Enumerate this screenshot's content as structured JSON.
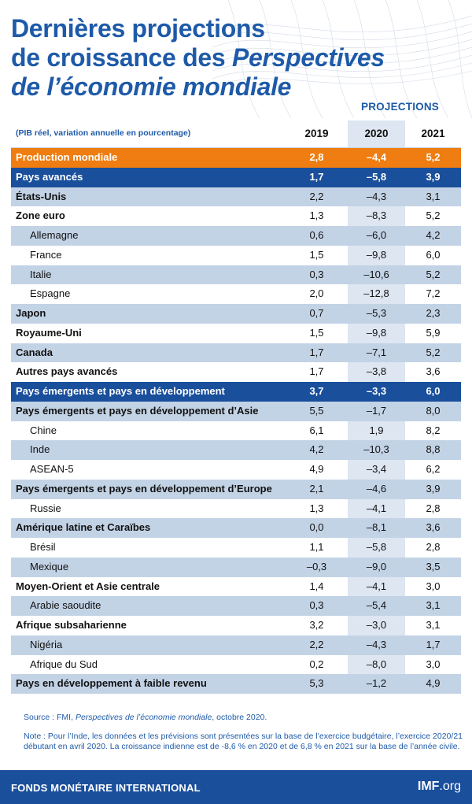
{
  "title": {
    "line1": "Dernières projections",
    "line2a": "de croissance des ",
    "line2b": "Perspectives",
    "line3": "de l’économie mondiale"
  },
  "projections_label": "PROJECTIONS",
  "table": {
    "unit_note": "(PIB réel, variation annuelle en pourcentage)",
    "years": [
      "2019",
      "2020",
      "2021"
    ],
    "rows": [
      {
        "label": "Production mondiale",
        "v": [
          "2,8",
          "–4,4",
          "5,2"
        ],
        "style": "world"
      },
      {
        "label": "Pays avancés",
        "v": [
          "1,7",
          "–5,8",
          "3,9"
        ],
        "style": "bluebar"
      },
      {
        "label": "États-Unis",
        "v": [
          "2,2",
          "–4,3",
          "3,1"
        ],
        "style": "bold alt"
      },
      {
        "label": "Zone euro",
        "v": [
          "1,3",
          "–8,3",
          "5,2"
        ],
        "style": "bold"
      },
      {
        "label": "Allemagne",
        "v": [
          "0,6",
          "–6,0",
          "4,2"
        ],
        "style": "sub alt"
      },
      {
        "label": "France",
        "v": [
          "1,5",
          "–9,8",
          "6,0"
        ],
        "style": "sub"
      },
      {
        "label": "Italie",
        "v": [
          "0,3",
          "–10,6",
          "5,2"
        ],
        "style": "sub alt"
      },
      {
        "label": "Espagne",
        "v": [
          "2,0",
          "–12,8",
          "7,2"
        ],
        "style": "sub"
      },
      {
        "label": "Japon",
        "v": [
          "0,7",
          "–5,3",
          "2,3"
        ],
        "style": "bold alt"
      },
      {
        "label": "Royaume-Uni",
        "v": [
          "1,5",
          "–9,8",
          "5,9"
        ],
        "style": "bold"
      },
      {
        "label": "Canada",
        "v": [
          "1,7",
          "–7,1",
          "5,2"
        ],
        "style": "bold alt"
      },
      {
        "label": "Autres pays avancés",
        "v": [
          "1,7",
          "–3,8",
          "3,6"
        ],
        "style": "bold"
      },
      {
        "label": "Pays émergents et pays en développement",
        "v": [
          "3,7",
          "–3,3",
          "6,0"
        ],
        "style": "bluebar"
      },
      {
        "label": "Pays émergents et pays en développement d’Asie",
        "v": [
          "5,5",
          "–1,7",
          "8,0"
        ],
        "style": "bold alt"
      },
      {
        "label": "Chine",
        "v": [
          "6,1",
          "1,9",
          "8,2"
        ],
        "style": "sub"
      },
      {
        "label": "Inde",
        "v": [
          "4,2",
          "–10,3",
          "8,8"
        ],
        "style": "sub alt"
      },
      {
        "label": "ASEAN-5",
        "v": [
          "4,9",
          "–3,4",
          "6,2"
        ],
        "style": "sub"
      },
      {
        "label": "Pays émergents et pays en développement d’Europe",
        "v": [
          "2,1",
          "–4,6",
          "3,9"
        ],
        "style": "bold alt"
      },
      {
        "label": "Russie",
        "v": [
          "1,3",
          "–4,1",
          "2,8"
        ],
        "style": "sub"
      },
      {
        "label": "Amérique latine et Caraïbes",
        "v": [
          "0,0",
          "–8,1",
          "3,6"
        ],
        "style": "bold alt"
      },
      {
        "label": "Brésil",
        "v": [
          "1,1",
          "–5,8",
          "2,8"
        ],
        "style": "sub"
      },
      {
        "label": "Mexique",
        "v": [
          "–0,3",
          "–9,0",
          "3,5"
        ],
        "style": "sub alt"
      },
      {
        "label": "Moyen-Orient et Asie centrale",
        "v": [
          "1,4",
          "–4,1",
          "3,0"
        ],
        "style": "bold"
      },
      {
        "label": "Arabie saoudite",
        "v": [
          "0,3",
          "–5,4",
          "3,1"
        ],
        "style": "sub alt"
      },
      {
        "label": "Afrique subsaharienne",
        "v": [
          "3,2",
          "–3,0",
          "3,1"
        ],
        "style": "bold"
      },
      {
        "label": "Nigéria",
        "v": [
          "2,2",
          "–4,3",
          "1,7"
        ],
        "style": "sub alt"
      },
      {
        "label": "Afrique du Sud",
        "v": [
          "0,2",
          "–8,0",
          "3,0"
        ],
        "style": "sub"
      },
      {
        "label": "Pays en développement à faible revenu",
        "v": [
          "5,3",
          "–1,2",
          "4,9"
        ],
        "style": "bold alt"
      }
    ]
  },
  "source": {
    "prefix": "Source : FMI, ",
    "italic": "Perspectives de l’économie mondiale",
    "suffix": ", octobre 2020."
  },
  "note": "Note : Pour l’Inde, les données et les prévisions sont présentées sur la base de l’exercice budgétaire, l’exercice 2020/21 débutant en avril 2020. La croissance indienne est de -8,6 % en 2020 et de 6,8 % en 2021 sur la base de l’année civile.",
  "footer": {
    "org": "FONDS MONÉTAIRE INTERNATIONAL",
    "site_bold": "IMF",
    "site_rest": ".org"
  },
  "colors": {
    "title_blue": "#1e5aa8",
    "world_orange": "#ef7d11",
    "bar_blue": "#1a4f9c",
    "row_alt": "#c3d3e6",
    "col_shade": "#dde6f1"
  }
}
